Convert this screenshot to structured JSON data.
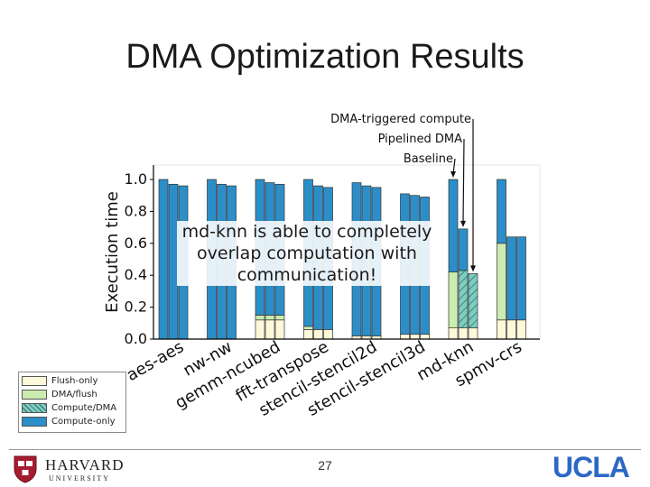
{
  "slide": {
    "title": "DMA Optimization Results",
    "callout": "md-knn is able to completely overlap computation with communication!",
    "page_number": "27"
  },
  "logos": {
    "harvard": {
      "name": "HARVARD",
      "sub": "UNIVERSITY"
    },
    "ucla": {
      "name": "UCLA"
    }
  },
  "annotations": [
    {
      "text": "DMA-triggered compute",
      "target": "md-knn compute-only bar"
    },
    {
      "text": "Pipelined DMA",
      "target": "md-knn pipelined bar"
    },
    {
      "text": "Baseline",
      "target": "md-knn baseline bar"
    }
  ],
  "colors": {
    "flush_only": "#fdf8d8",
    "dma_flush": "#ccebb0",
    "compute_dma": "#7ecdc1",
    "compute_only": "#2c8ec8",
    "ucla_blue": "#2d68c4"
  },
  "chart_data": {
    "type": "bar",
    "stacked": true,
    "bars_per_category": [
      "Baseline",
      "Pipelined DMA",
      "DMA-triggered compute"
    ],
    "title": "",
    "xlabel": "",
    "ylabel": "Execution time",
    "ylim": [
      0.0,
      1.05
    ],
    "yticks": [
      "1.0",
      "0.8",
      "0.6",
      "0.4",
      "0.2",
      "0.0"
    ],
    "categories": [
      "aes-aes",
      "nw-nw",
      "gemm-ncubed",
      "fft-transpose",
      "stencil-stencil2d",
      "stencil-stencil3d",
      "md-knn",
      "spmv-crs"
    ],
    "legend": {
      "placement": "below-left",
      "entries": [
        "Flush-only",
        "DMA/flush",
        "Compute/DMA",
        "Compute-only"
      ]
    },
    "series": [
      {
        "name": "Flush-only",
        "values": [
          [
            0.0,
            0.0,
            0.0
          ],
          [
            0.0,
            0.0,
            0.0
          ],
          [
            0.12,
            0.12,
            0.12
          ],
          [
            0.06,
            0.06,
            0.06
          ],
          [
            0.02,
            0.02,
            0.02
          ],
          [
            0.03,
            0.03,
            0.03
          ],
          [
            0.07,
            0.07,
            0.07
          ],
          [
            0.12,
            0.12,
            0.12
          ]
        ]
      },
      {
        "name": "DMA/flush",
        "values": [
          [
            0.0,
            0.0,
            0.0
          ],
          [
            0.0,
            0.0,
            0.0
          ],
          [
            0.03,
            0.03,
            0.03
          ],
          [
            0.02,
            0.0,
            0.0
          ],
          [
            0.0,
            0.0,
            0.0
          ],
          [
            0.0,
            0.0,
            0.0
          ],
          [
            0.35,
            0.0,
            0.0
          ],
          [
            0.48,
            0.0,
            0.0
          ]
        ]
      },
      {
        "name": "Compute/DMA",
        "values": [
          [
            0.0,
            0.0,
            0.0
          ],
          [
            0.0,
            0.0,
            0.0
          ],
          [
            0.0,
            0.0,
            0.0
          ],
          [
            0.0,
            0.0,
            0.0
          ],
          [
            0.0,
            0.0,
            0.0
          ],
          [
            0.0,
            0.0,
            0.0
          ],
          [
            0.0,
            0.36,
            0.34
          ],
          [
            0.0,
            0.0,
            0.0
          ]
        ]
      },
      {
        "name": "Compute-only",
        "values": [
          [
            1.0,
            0.97,
            0.96
          ],
          [
            1.0,
            0.97,
            0.96
          ],
          [
            0.85,
            0.83,
            0.82
          ],
          [
            0.92,
            0.9,
            0.89
          ],
          [
            0.96,
            0.94,
            0.93
          ],
          [
            0.88,
            0.87,
            0.86
          ],
          [
            0.58,
            0.26,
            0.0
          ],
          [
            0.4,
            0.52,
            0.52
          ]
        ]
      }
    ]
  }
}
